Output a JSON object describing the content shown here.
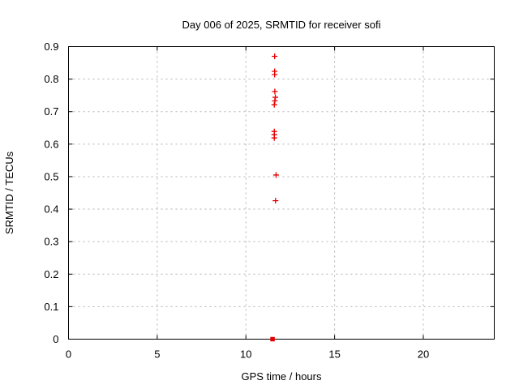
{
  "title": "Day 006 of 2025, SRMTID for receiver sofi",
  "chart_data": {
    "type": "scatter",
    "title": "Day 006 of 2025, SRMTID for receiver sofi",
    "xlabel": "GPS time / hours",
    "ylabel": "SRMTID / TECUs",
    "xlim": [
      0,
      24
    ],
    "ylim": [
      0,
      0.9
    ],
    "xtick_values": [
      0,
      5,
      10,
      15,
      20
    ],
    "xtick_labels": [
      "0",
      "5",
      "10",
      "15",
      "20"
    ],
    "ytick_values": [
      0,
      0.1,
      0.2,
      0.3,
      0.4,
      0.5,
      0.6,
      0.7,
      0.8,
      0.9
    ],
    "ytick_labels": [
      "0",
      "0.1",
      "0.2",
      "0.3",
      "0.4",
      "0.5",
      "0.6",
      "0.7",
      "0.8",
      "0.9"
    ],
    "grid": true,
    "legend_position": "none",
    "colors": {
      "marker": "#e60000",
      "grid": "#b0b0b0",
      "axis": "#000000",
      "background": "#ffffff"
    },
    "series": [
      {
        "name": "SRMTID",
        "default_marker": "plus",
        "points": [
          {
            "x": 11.62,
            "y": 0.87,
            "marker": "plus"
          },
          {
            "x": 11.62,
            "y": 0.824,
            "marker": "plus"
          },
          {
            "x": 11.62,
            "y": 0.814,
            "marker": "plus"
          },
          {
            "x": 11.63,
            "y": 0.762,
            "marker": "plus"
          },
          {
            "x": 11.66,
            "y": 0.744,
            "marker": "plus"
          },
          {
            "x": 11.63,
            "y": 0.733,
            "marker": "plus"
          },
          {
            "x": 11.6,
            "y": 0.721,
            "marker": "plus"
          },
          {
            "x": 11.6,
            "y": 0.639,
            "marker": "plus"
          },
          {
            "x": 11.6,
            "y": 0.629,
            "marker": "plus"
          },
          {
            "x": 11.6,
            "y": 0.619,
            "marker": "plus"
          },
          {
            "x": 11.7,
            "y": 0.505,
            "marker": "plus"
          },
          {
            "x": 11.67,
            "y": 0.426,
            "marker": "plus"
          },
          {
            "x": 11.5,
            "y": 0.0,
            "marker": "filled-square"
          }
        ]
      }
    ]
  }
}
